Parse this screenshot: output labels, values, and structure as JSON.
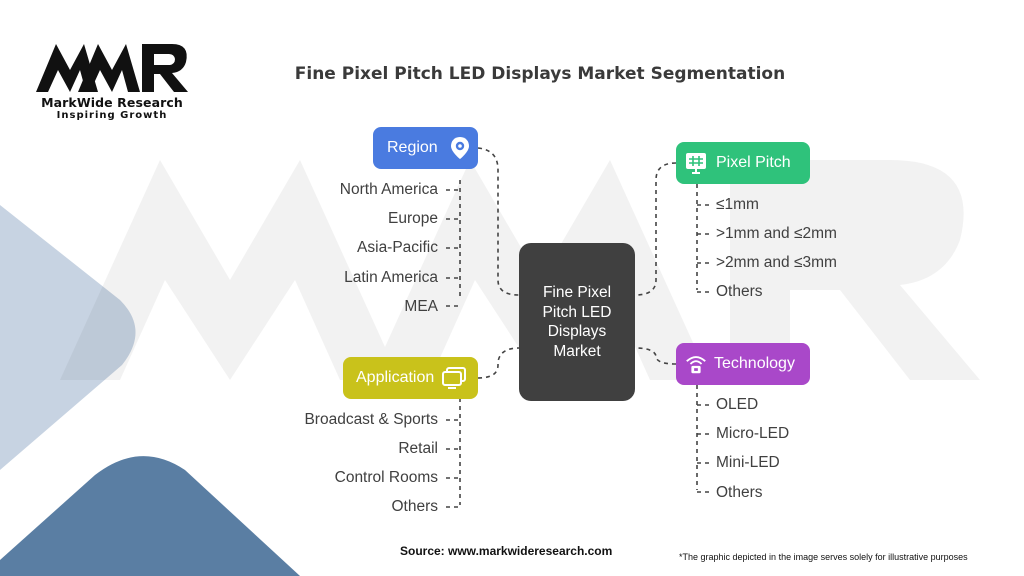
{
  "brand": {
    "name": "MarkWide Research",
    "tagline": "Inspiring Growth",
    "logo_text": "MWR"
  },
  "title": "Fine Pixel Pitch LED Displays Market Segmentation",
  "center_label": "Fine Pixel Pitch LED Displays Market",
  "segments": [
    {
      "label": "Region",
      "icon": "location-settings-icon",
      "color": "#4a7be0",
      "items": [
        "North America",
        "Europe",
        "Asia-Pacific",
        "Latin America",
        "MEA"
      ]
    },
    {
      "label": "Application",
      "icon": "monitor-icon",
      "color": "#c9c21b",
      "items": [
        "Broadcast & Sports",
        "Retail",
        "Control Rooms",
        "Others"
      ]
    },
    {
      "label": "Pixel Pitch",
      "icon": "grid-monitor-icon",
      "color": "#2fc27b",
      "items": [
        "≤1mm",
        ">1mm and ≤2mm",
        ">2mm and ≤3mm",
        "Others"
      ]
    },
    {
      "label": "Technology",
      "icon": "wireless-chip-icon",
      "color": "#a948c9",
      "items": [
        "OLED",
        "Micro-LED",
        "Mini-LED",
        "Others"
      ]
    }
  ],
  "source": "Source: www.markwideresearch.com",
  "disclaimer": "*The graphic depicted in the image serves solely for illustrative purposes"
}
